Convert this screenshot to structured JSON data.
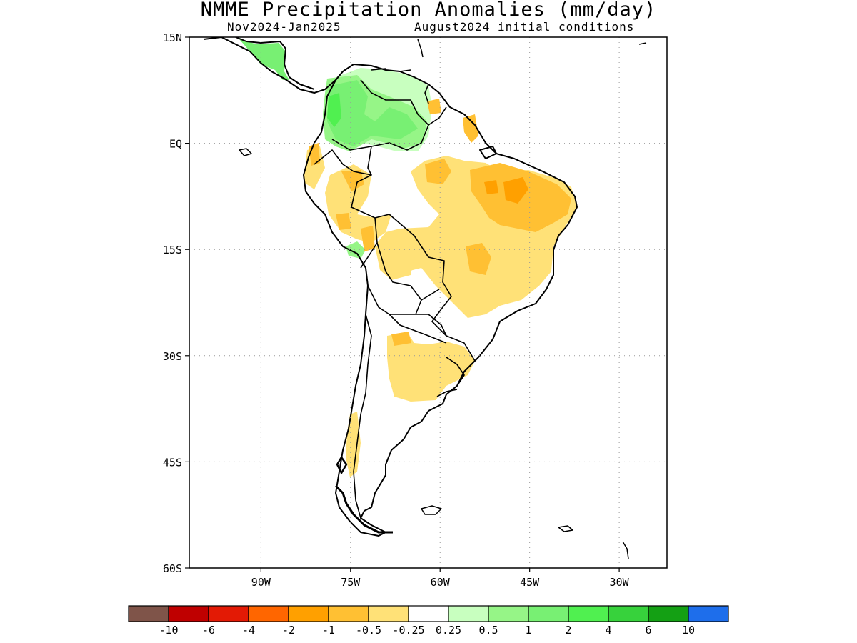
{
  "title": "NMME Precipitation Anomalies (mm/day)",
  "subtitle_left": "Nov2024-Jan2025",
  "subtitle_right": "August2024 initial conditions",
  "lat_labels": [
    "15N",
    "EQ",
    "15S",
    "30S",
    "45S",
    "60S"
  ],
  "lon_labels": [
    "90W",
    "75W",
    "60W",
    "45W",
    "30W"
  ],
  "map": {
    "lon_range": [
      -102,
      -22
    ],
    "lat_range": [
      -60,
      15
    ],
    "grid": true
  },
  "legend": {
    "colors": [
      "#7f5449",
      "#bf0000",
      "#e31a05",
      "#ff6600",
      "#ffa000",
      "#ffc033",
      "#ffe177",
      "#ffffff",
      "#c8ffbf",
      "#96f587",
      "#78f073",
      "#50f050",
      "#37d23c",
      "#14a014",
      "#1e6eeb"
    ],
    "labels": [
      "-10",
      "-6",
      "-4",
      "-2",
      "-1",
      "-0.5",
      "-0.25",
      "0.25",
      "0.5",
      "1",
      "2",
      "4",
      "6",
      "10"
    ]
  }
}
